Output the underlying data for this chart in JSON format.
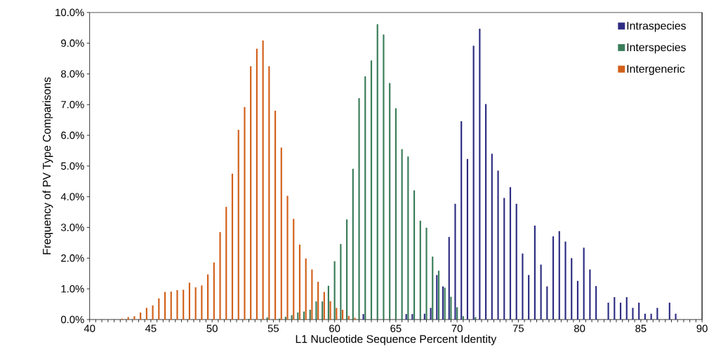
{
  "chart_data": {
    "type": "bar",
    "xlabel": "L1 Nucleotide Sequence Percent Identity",
    "ylabel": "Frequency of PV Type Comparisons",
    "xlim": [
      40,
      90
    ],
    "xticks": [
      40,
      45,
      50,
      55,
      60,
      65,
      70,
      75,
      80,
      85,
      90
    ],
    "ylim": [
      0,
      10
    ],
    "yticks": [
      {
        "value": 0,
        "label": "0.0%"
      },
      {
        "value": 1,
        "label": "1.0%"
      },
      {
        "value": 2,
        "label": "2.0%"
      },
      {
        "value": 3,
        "label": "3.0%"
      },
      {
        "value": 4,
        "label": "4.0%"
      },
      {
        "value": 5,
        "label": "5.0%"
      },
      {
        "value": 6,
        "label": "6.0%"
      },
      {
        "value": 7,
        "label": "7.0%"
      },
      {
        "value": 8,
        "label": "8.0%"
      },
      {
        "value": 9,
        "label": "9.0%"
      },
      {
        "value": 10,
        "label": "10.0%"
      }
    ],
    "legend": "top right",
    "marker": "square",
    "series": [
      {
        "name": "Intraspecies",
        "color": "#2e2d83",
        "x": [
          62.5,
          66.0,
          66.5,
          67.5,
          68.0,
          68.5,
          69.0,
          69.5,
          70.0,
          70.5,
          71.0,
          71.5,
          72.0,
          72.5,
          73.0,
          73.5,
          74.0,
          74.5,
          75.0,
          75.5,
          76.0,
          76.5,
          77.0,
          77.5,
          78.0,
          78.5,
          79.0,
          79.5,
          80.0,
          80.5,
          81.0,
          81.5,
          82.5,
          83.0,
          83.5,
          84.0,
          84.5,
          85.0,
          85.5,
          86.0,
          86.5,
          87.5,
          88.0
        ],
        "values": [
          0.18,
          0.18,
          0.18,
          0.19,
          0.38,
          1.45,
          1.08,
          2.69,
          3.77,
          6.46,
          5.23,
          8.92,
          9.47,
          7.02,
          5.4,
          4.85,
          3.96,
          4.31,
          3.77,
          2.15,
          1.45,
          3.06,
          1.79,
          1.08,
          2.71,
          2.88,
          2.54,
          2.0,
          1.26,
          2.34,
          1.63,
          1.09,
          0.55,
          0.73,
          0.55,
          0.73,
          0.38,
          0.55,
          0.19,
          0.19,
          0.38,
          0.55,
          0.19
        ]
      },
      {
        "name": "Interspecies",
        "color": "#3a7d5a",
        "x": [
          53.0,
          54.5,
          55.5,
          56.0,
          56.5,
          57.0,
          57.5,
          58.0,
          58.5,
          59.0,
          59.5,
          60.0,
          60.5,
          61.0,
          61.5,
          62.0,
          62.5,
          63.0,
          63.5,
          64.0,
          64.5,
          65.0,
          65.5,
          66.0,
          66.5,
          67.0,
          67.5,
          68.0,
          68.5,
          69.0,
          69.5,
          70.0,
          70.5,
          71.5
        ],
        "values": [
          0.02,
          0.07,
          0.03,
          0.09,
          0.14,
          0.23,
          0.26,
          0.32,
          0.59,
          0.59,
          1.1,
          1.9,
          2.46,
          3.26,
          4.91,
          7.21,
          7.92,
          8.44,
          9.62,
          9.28,
          7.7,
          6.88,
          5.55,
          5.31,
          4.21,
          3.22,
          2.99,
          2.05,
          1.59,
          1.04,
          0.74,
          0.4,
          0.11,
          0.08
        ]
      },
      {
        "name": "Intergeneric",
        "color": "#d2601a",
        "x": [
          42.5,
          43.0,
          43.5,
          44.0,
          44.5,
          45.0,
          45.5,
          46.0,
          46.5,
          47.0,
          47.5,
          48.0,
          48.5,
          49.0,
          49.5,
          50.0,
          50.5,
          51.0,
          51.5,
          52.0,
          52.5,
          53.0,
          53.5,
          54.0,
          54.5,
          55.0,
          55.5,
          56.0,
          56.5,
          57.0,
          57.5,
          58.0,
          58.5,
          59.0,
          59.5,
          60.0,
          60.5,
          61.0,
          61.5
        ],
        "values": [
          0.03,
          0.08,
          0.11,
          0.23,
          0.38,
          0.46,
          0.69,
          0.9,
          0.91,
          0.96,
          0.97,
          1.2,
          1.05,
          1.11,
          1.47,
          1.86,
          2.85,
          3.67,
          4.75,
          6.18,
          6.92,
          8.25,
          8.82,
          9.09,
          8.25,
          6.8,
          5.6,
          4.03,
          3.28,
          2.44,
          1.99,
          1.63,
          1.23,
          0.9,
          0.6,
          0.38,
          0.32,
          0.12,
          0.06
        ]
      }
    ]
  }
}
